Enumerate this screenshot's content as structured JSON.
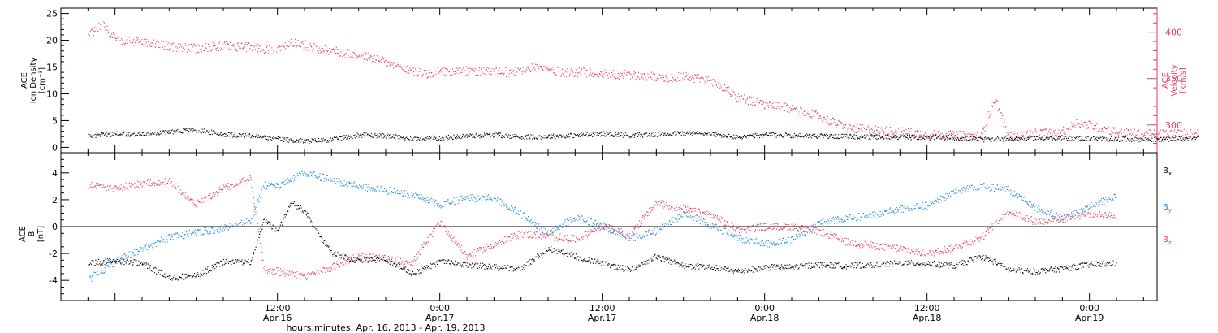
{
  "chart_data": [
    {
      "type": "scatter",
      "panel": "top",
      "x_range": [
        "Apr.15 22:00",
        "Apr.19 07:00"
      ],
      "y_left_label": [
        "ACE",
        "Ion Density",
        "[cm⁻³]"
      ],
      "y_left_ticks": [
        "0",
        "5",
        "10",
        "15",
        "20",
        "25"
      ],
      "y_left_lim": [
        -1,
        26
      ],
      "y_right_label": [
        "ACE",
        "Velocity",
        "[km/s]"
      ],
      "y_right_ticks": [
        "300",
        "350",
        "400"
      ],
      "y_right_lim": [
        270,
        426
      ],
      "series": [
        {
          "axis": "left",
          "color": "#000000",
          "values": [
            [
              0,
              2.2
            ],
            [
              2,
              2.6
            ],
            [
              4,
              2.5
            ],
            [
              6,
              3.0
            ],
            [
              8,
              3.3
            ],
            [
              10,
              2.5
            ],
            [
              12,
              2.2
            ],
            [
              14,
              1.6
            ],
            [
              16,
              1.2
            ],
            [
              18,
              1.5
            ],
            [
              20,
              2.4
            ],
            [
              22,
              2.2
            ],
            [
              24,
              1.7
            ],
            [
              26,
              1.8
            ],
            [
              28,
              2.2
            ],
            [
              30,
              2.4
            ],
            [
              32,
              2.0
            ],
            [
              34,
              2.1
            ],
            [
              36,
              2.3
            ],
            [
              38,
              2.6
            ],
            [
              40,
              2.3
            ],
            [
              42,
              2.5
            ],
            [
              44,
              2.7
            ],
            [
              46,
              2.6
            ],
            [
              48,
              1.9
            ],
            [
              50,
              2.4
            ],
            [
              52,
              2.3
            ],
            [
              54,
              2.2
            ],
            [
              56,
              2.1
            ],
            [
              58,
              2.0
            ],
            [
              60,
              2.0
            ],
            [
              62,
              1.9
            ],
            [
              64,
              1.9
            ],
            [
              66,
              1.5
            ],
            [
              68,
              1.7
            ],
            [
              70,
              1.8
            ],
            [
              72,
              1.8
            ],
            [
              74,
              1.7
            ],
            [
              76,
              1.6
            ],
            [
              78,
              1.5
            ],
            [
              80,
              1.6
            ],
            [
              82,
              1.7
            ]
          ]
        },
        {
          "axis": "right",
          "color": "#e83a62",
          "values": [
            [
              0,
              397
            ],
            [
              1,
              410
            ],
            [
              2,
              392
            ],
            [
              4,
              390
            ],
            [
              6,
              385
            ],
            [
              8,
              383
            ],
            [
              10,
              386
            ],
            [
              12,
              384
            ],
            [
              14,
              381
            ],
            [
              15,
              390
            ],
            [
              17,
              383
            ],
            [
              19,
              378
            ],
            [
              21,
              373
            ],
            [
              23,
              362
            ],
            [
              25,
              355
            ],
            [
              27,
              359
            ],
            [
              29,
              358
            ],
            [
              31,
              357
            ],
            [
              33,
              363
            ],
            [
              35,
              357
            ],
            [
              37,
              357
            ],
            [
              39,
              355
            ],
            [
              41,
              353
            ],
            [
              43,
              351
            ],
            [
              44,
              353
            ],
            [
              46,
              348
            ],
            [
              47,
              340
            ],
            [
              48,
              330
            ],
            [
              50,
              322
            ],
            [
              52,
              318
            ],
            [
              54,
              310
            ],
            [
              56,
              297
            ],
            [
              58,
              295
            ],
            [
              60,
              293
            ],
            [
              62,
              290
            ],
            [
              64,
              289
            ],
            [
              66,
              289
            ],
            [
              67,
              330
            ],
            [
              68,
              288
            ],
            [
              70,
              291
            ],
            [
              72,
              293
            ],
            [
              73,
              303
            ],
            [
              74,
              300
            ],
            [
              76,
              293
            ],
            [
              78,
              290
            ],
            [
              80,
              291
            ],
            [
              82,
              291
            ]
          ]
        }
      ]
    },
    {
      "type": "scatter",
      "panel": "bottom",
      "x_ticks": [
        {
          "h": 14,
          "time": "12:00",
          "date": "Apr.16"
        },
        {
          "h": 26,
          "time": "0:00",
          "date": "Apr.17"
        },
        {
          "h": 38,
          "time": "12:00",
          "date": "Apr.17"
        },
        {
          "h": 50,
          "time": "0:00",
          "date": "Apr.18"
        },
        {
          "h": 62,
          "time": "12:00",
          "date": "Apr.18"
        },
        {
          "h": 74,
          "time": "0:00",
          "date": "Apr.19"
        }
      ],
      "xlabel": "hours:minutes, Apr. 16, 2013 - Apr. 19, 2013",
      "y_label": [
        "ACE",
        "B",
        "[nT]"
      ],
      "y_ticks": [
        "-4",
        "-2",
        "0",
        "2",
        "4"
      ],
      "ylim": [
        -5.5,
        5.5
      ],
      "zero_line": true,
      "series": [
        {
          "name": "Bx",
          "color": "#000000",
          "values": [
            [
              0,
              -2.7
            ],
            [
              2,
              -2.5
            ],
            [
              4,
              -2.7
            ],
            [
              6,
              -3.8
            ],
            [
              8,
              -3.6
            ],
            [
              10,
              -2.6
            ],
            [
              12,
              -2.6
            ],
            [
              13,
              0.5
            ],
            [
              14,
              -0.3
            ],
            [
              15,
              1.8
            ],
            [
              16,
              1.2
            ],
            [
              18,
              -2.0
            ],
            [
              20,
              -2.5
            ],
            [
              22,
              -2.4
            ],
            [
              24,
              -3.5
            ],
            [
              26,
              -2.6
            ],
            [
              28,
              -2.8
            ],
            [
              30,
              -3.0
            ],
            [
              32,
              -3.1
            ],
            [
              34,
              -1.6
            ],
            [
              36,
              -2.2
            ],
            [
              38,
              -2.7
            ],
            [
              40,
              -3.2
            ],
            [
              42,
              -2.2
            ],
            [
              44,
              -2.9
            ],
            [
              46,
              -3.0
            ],
            [
              48,
              -3.3
            ],
            [
              50,
              -3.0
            ],
            [
              52,
              -3.0
            ],
            [
              54,
              -2.8
            ],
            [
              56,
              -2.9
            ],
            [
              58,
              -2.8
            ],
            [
              60,
              -2.7
            ],
            [
              62,
              -2.7
            ],
            [
              64,
              -2.9
            ],
            [
              66,
              -2.2
            ],
            [
              67,
              -2.6
            ],
            [
              68,
              -3.2
            ],
            [
              70,
              -3.3
            ],
            [
              72,
              -3.1
            ],
            [
              74,
              -2.8
            ],
            [
              76,
              -2.7
            ]
          ]
        },
        {
          "name": "By",
          "color": "#1f88dc",
          "values": [
            [
              0,
              -3.9
            ],
            [
              2,
              -2.6
            ],
            [
              4,
              -1.6
            ],
            [
              6,
              -0.8
            ],
            [
              8,
              -0.4
            ],
            [
              10,
              -0.1
            ],
            [
              12,
              0.4
            ],
            [
              13,
              3.1
            ],
            [
              14,
              3.0
            ],
            [
              16,
              4.0
            ],
            [
              18,
              3.5
            ],
            [
              20,
              3.0
            ],
            [
              22,
              2.7
            ],
            [
              24,
              2.4
            ],
            [
              26,
              1.6
            ],
            [
              28,
              2.2
            ],
            [
              30,
              2.1
            ],
            [
              32,
              0.9
            ],
            [
              34,
              -0.5
            ],
            [
              36,
              0.7
            ],
            [
              38,
              0.1
            ],
            [
              40,
              -0.9
            ],
            [
              42,
              -0.3
            ],
            [
              44,
              1.0
            ],
            [
              46,
              0.1
            ],
            [
              48,
              -0.8
            ],
            [
              50,
              -1.3
            ],
            [
              52,
              -1.0
            ],
            [
              54,
              0.3
            ],
            [
              56,
              0.6
            ],
            [
              58,
              0.9
            ],
            [
              60,
              1.3
            ],
            [
              62,
              1.6
            ],
            [
              64,
              2.6
            ],
            [
              66,
              3.0
            ],
            [
              68,
              2.8
            ],
            [
              70,
              1.4
            ],
            [
              72,
              0.6
            ],
            [
              74,
              1.5
            ],
            [
              76,
              2.3
            ]
          ]
        },
        {
          "name": "Bz",
          "color": "#e83a62",
          "values": [
            [
              0,
              3.1
            ],
            [
              2,
              2.9
            ],
            [
              4,
              3.2
            ],
            [
              6,
              3.4
            ],
            [
              8,
              1.7
            ],
            [
              10,
              2.9
            ],
            [
              12,
              3.6
            ],
            [
              13,
              -3.1
            ],
            [
              14,
              -3.3
            ],
            [
              16,
              -3.7
            ],
            [
              18,
              -3.0
            ],
            [
              20,
              -2.1
            ],
            [
              22,
              -2.4
            ],
            [
              24,
              -2.6
            ],
            [
              26,
              0.4
            ],
            [
              28,
              -2.2
            ],
            [
              30,
              -1.3
            ],
            [
              32,
              -0.5
            ],
            [
              34,
              -0.7
            ],
            [
              36,
              -0.9
            ],
            [
              38,
              0.1
            ],
            [
              40,
              -0.6
            ],
            [
              42,
              1.8
            ],
            [
              44,
              1.3
            ],
            [
              46,
              0.9
            ],
            [
              48,
              -0.2
            ],
            [
              50,
              0.0
            ],
            [
              52,
              0.0
            ],
            [
              54,
              -0.3
            ],
            [
              56,
              -1.1
            ],
            [
              58,
              -1.4
            ],
            [
              60,
              -1.6
            ],
            [
              62,
              -2.0
            ],
            [
              64,
              -1.5
            ],
            [
              66,
              -0.8
            ],
            [
              68,
              1.2
            ],
            [
              70,
              0.4
            ],
            [
              72,
              0.6
            ],
            [
              74,
              1.0
            ],
            [
              76,
              0.8
            ]
          ]
        }
      ],
      "legend": [
        "B",
        "B",
        "B"
      ],
      "legend_subscripts": [
        "x",
        "y",
        "z"
      ],
      "legend_placement": "right"
    }
  ]
}
